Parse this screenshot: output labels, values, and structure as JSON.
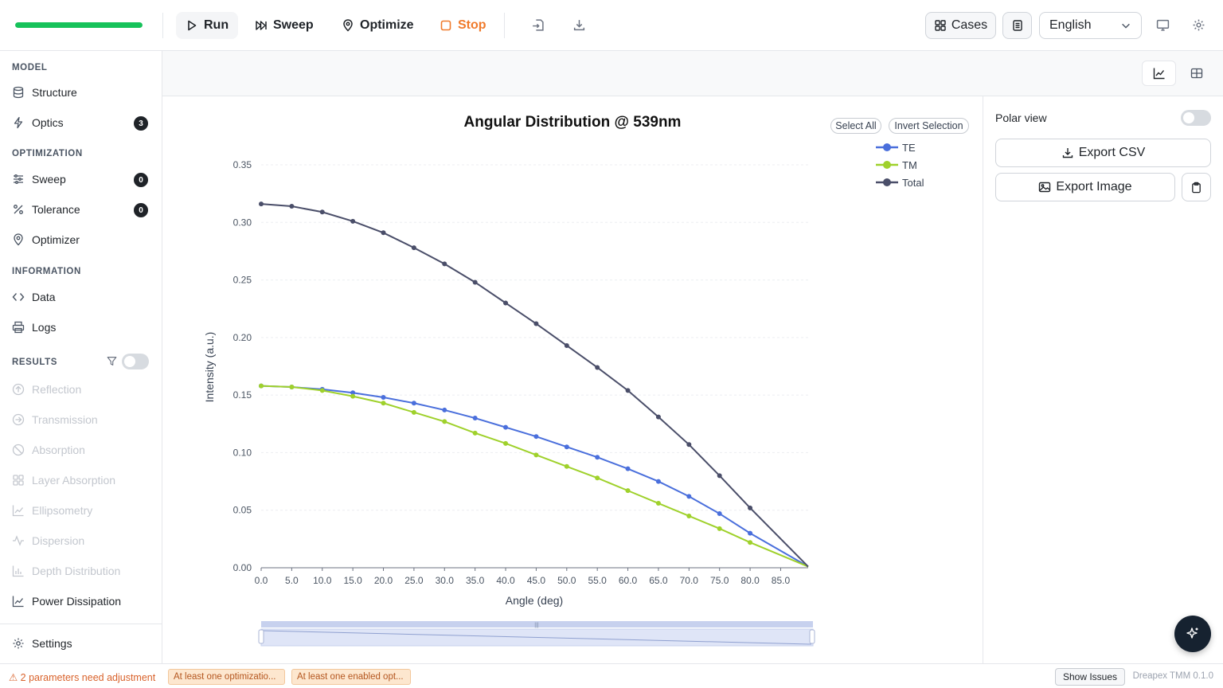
{
  "toolbar": {
    "progress_fraction": 1.0,
    "run_label": "Run",
    "sweep_label": "Sweep",
    "optimize_label": "Optimize",
    "stop_label": "Stop",
    "cases_label": "Cases",
    "language": "English",
    "icons": [
      "play-icon",
      "fast-forward-icon",
      "map-pin-icon",
      "stop-square-icon",
      "import-icon",
      "download-icon",
      "grid-icon",
      "document-icon",
      "chevron-down-icon",
      "monitor-icon",
      "gear-icon"
    ]
  },
  "sidebar": {
    "model_label": "MODEL",
    "structure_label": "Structure",
    "optics_label": "Optics",
    "optics_badge": "3",
    "optimization_label": "OPTIMIZATION",
    "sweep_label": "Sweep",
    "sweep_badge": "0",
    "tolerance_label": "Tolerance",
    "tolerance_badge": "0",
    "optimizer_label": "Optimizer",
    "information_label": "INFORMATION",
    "data_label": "Data",
    "logs_label": "Logs",
    "results_label": "RESULTS",
    "results": [
      {
        "label": "Reflection"
      },
      {
        "label": "Transmission"
      },
      {
        "label": "Absorption"
      },
      {
        "label": "Layer Absorption"
      },
      {
        "label": "Ellipsometry"
      },
      {
        "label": "Dispersion"
      },
      {
        "label": "Depth Distribution"
      },
      {
        "label": "Power Dissipation"
      }
    ],
    "settings_label": "Settings"
  },
  "panel": {
    "polar_label": "Polar view",
    "export_csv": "Export CSV",
    "export_image": "Export Image"
  },
  "chart_controls": {
    "select_all": "Select All",
    "invert_selection": "Invert Selection"
  },
  "status": {
    "warning": "⚠ 2 parameters need adjustment",
    "chip1": "At least one optimizatio...",
    "chip2": "At least one enabled opt...",
    "show_issues": "Show Issues",
    "version": "Dreapex TMM 0.1.0"
  },
  "chart_data": {
    "type": "line",
    "title": "Angular Distribution @ 539nm",
    "xlabel": "Angle (deg)",
    "ylabel": "Intensity (a.u.)",
    "x": [
      0,
      5,
      10,
      15,
      20,
      25,
      30,
      35,
      40,
      45,
      50,
      55,
      60,
      65,
      70,
      75,
      80,
      89.5
    ],
    "xticks": [
      "0.0",
      "5.0",
      "10.0",
      "15.0",
      "20.0",
      "25.0",
      "30.0",
      "35.0",
      "40.0",
      "45.0",
      "50.0",
      "55.0",
      "60.0",
      "65.0",
      "70.0",
      "75.0",
      "80.0",
      "85.0"
    ],
    "yticks": [
      "0.00",
      "0.05",
      "0.10",
      "0.15",
      "0.20",
      "0.25",
      "0.30",
      "0.35"
    ],
    "ylim": [
      0,
      0.35
    ],
    "xlim": [
      0,
      89.5
    ],
    "grid": true,
    "legend_position": "top-right",
    "series": [
      {
        "name": "TE",
        "color": "#4a6fdc",
        "values": [
          0.158,
          0.157,
          0.155,
          0.152,
          0.148,
          0.143,
          0.137,
          0.13,
          0.122,
          0.114,
          0.105,
          0.096,
          0.086,
          0.075,
          0.062,
          0.047,
          0.03,
          0.001
        ]
      },
      {
        "name": "TM",
        "color": "#9fd12b",
        "values": [
          0.158,
          0.157,
          0.154,
          0.149,
          0.143,
          0.135,
          0.127,
          0.117,
          0.108,
          0.098,
          0.088,
          0.078,
          0.067,
          0.056,
          0.045,
          0.034,
          0.022,
          0.001
        ]
      },
      {
        "name": "Total",
        "color": "#4a4e69",
        "values": [
          0.316,
          0.314,
          0.309,
          0.301,
          0.291,
          0.278,
          0.264,
          0.248,
          0.23,
          0.212,
          0.193,
          0.174,
          0.154,
          0.131,
          0.107,
          0.08,
          0.052,
          0.001
        ]
      }
    ]
  }
}
